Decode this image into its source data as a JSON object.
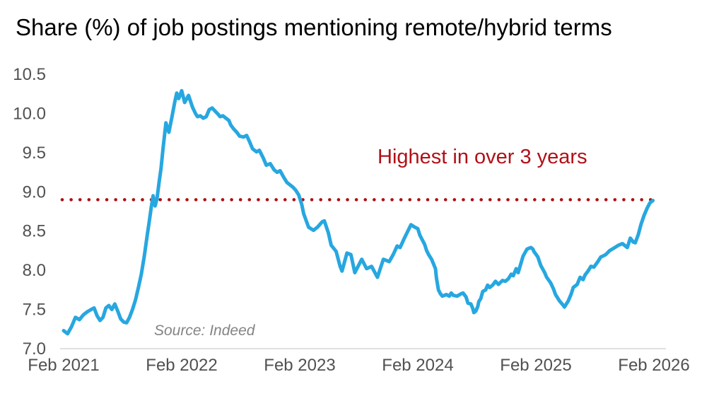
{
  "title": "Share (%) of job postings mentioning remote/hybrid terms",
  "annotation": {
    "text": "Highest in over 3 years",
    "color": "#B01118"
  },
  "source": {
    "text": "Source: Indeed"
  },
  "colors": {
    "line": "#27A7E0",
    "threshold": "#AE0E13",
    "axis_text": "#515151",
    "axis_line": "#D5D5D5",
    "title_text": "#000000",
    "source_text": "#848484",
    "background": "#FFFFFF"
  },
  "chart_data": {
    "type": "line",
    "title": "Share (%) of job postings mentioning remote/hybrid terms",
    "xlabel": "",
    "ylabel": "",
    "x_unit": "months since Feb 2021",
    "x_tick_labels": [
      "Feb 2021",
      "Feb 2022",
      "Feb 2023",
      "Feb 2024",
      "Feb 2025",
      "Feb 2026"
    ],
    "x_tick_months": [
      0,
      12,
      24,
      36,
      48,
      60
    ],
    "y_ticks": [
      7.0,
      7.5,
      8.0,
      8.5,
      9.0,
      9.5,
      10.0,
      10.5
    ],
    "y_tick_labels": [
      "7.0",
      "7.5",
      "8.0",
      "8.5",
      "9.0",
      "9.5",
      "10.0",
      "10.5"
    ],
    "ylim": [
      7.0,
      10.5
    ],
    "xlim_months": [
      0,
      60
    ],
    "grid": false,
    "legend": "none",
    "threshold_value": 8.9,
    "threshold_style": "dotted",
    "series": [
      {
        "name": "Share of job postings mentioning remote/hybrid terms (%)",
        "points": [
          [
            0,
            7.23
          ],
          [
            0.4,
            7.19
          ],
          [
            0.8,
            7.28
          ],
          [
            1.2,
            7.4
          ],
          [
            1.6,
            7.37
          ],
          [
            2.0,
            7.43
          ],
          [
            2.4,
            7.47
          ],
          [
            2.8,
            7.5
          ],
          [
            3.1,
            7.52
          ],
          [
            3.4,
            7.42
          ],
          [
            3.7,
            7.36
          ],
          [
            4.0,
            7.4
          ],
          [
            4.3,
            7.52
          ],
          [
            4.6,
            7.55
          ],
          [
            4.9,
            7.5
          ],
          [
            5.2,
            7.57
          ],
          [
            5.5,
            7.48
          ],
          [
            5.8,
            7.38
          ],
          [
            6.1,
            7.34
          ],
          [
            6.4,
            7.33
          ],
          [
            6.7,
            7.4
          ],
          [
            7.0,
            7.5
          ],
          [
            7.3,
            7.62
          ],
          [
            7.6,
            7.78
          ],
          [
            7.9,
            7.95
          ],
          [
            8.2,
            8.18
          ],
          [
            8.5,
            8.45
          ],
          [
            8.7,
            8.62
          ],
          [
            8.9,
            8.8
          ],
          [
            9.1,
            8.95
          ],
          [
            9.3,
            8.82
          ],
          [
            9.5,
            8.92
          ],
          [
            9.7,
            9.12
          ],
          [
            9.9,
            9.3
          ],
          [
            10.1,
            9.55
          ],
          [
            10.4,
            9.88
          ],
          [
            10.7,
            9.76
          ],
          [
            11.0,
            9.95
          ],
          [
            11.3,
            10.15
          ],
          [
            11.5,
            10.26
          ],
          [
            11.7,
            10.19
          ],
          [
            12.0,
            10.29
          ],
          [
            12.3,
            10.14
          ],
          [
            12.7,
            10.23
          ],
          [
            13.1,
            10.08
          ],
          [
            13.4,
            10.0
          ],
          [
            13.6,
            9.96
          ],
          [
            13.9,
            9.97
          ],
          [
            14.2,
            9.94
          ],
          [
            14.5,
            9.96
          ],
          [
            14.8,
            10.05
          ],
          [
            15.1,
            10.07
          ],
          [
            15.4,
            10.03
          ],
          [
            15.7,
            9.99
          ],
          [
            15.9,
            9.96
          ],
          [
            16.2,
            9.97
          ],
          [
            16.5,
            9.94
          ],
          [
            16.8,
            9.91
          ],
          [
            17.0,
            9.85
          ],
          [
            17.3,
            9.8
          ],
          [
            17.6,
            9.76
          ],
          [
            17.9,
            9.71
          ],
          [
            18.3,
            9.7
          ],
          [
            18.6,
            9.72
          ],
          [
            18.9,
            9.64
          ],
          [
            19.2,
            9.55
          ],
          [
            19.6,
            9.51
          ],
          [
            19.9,
            9.53
          ],
          [
            20.3,
            9.43
          ],
          [
            20.6,
            9.34
          ],
          [
            21.0,
            9.36
          ],
          [
            21.4,
            9.28
          ],
          [
            21.7,
            9.25
          ],
          [
            22.0,
            9.27
          ],
          [
            22.4,
            9.18
          ],
          [
            22.7,
            9.12
          ],
          [
            23.0,
            9.09
          ],
          [
            23.3,
            9.06
          ],
          [
            23.6,
            9.02
          ],
          [
            23.9,
            8.96
          ],
          [
            24.2,
            8.84
          ],
          [
            24.4,
            8.72
          ],
          [
            24.9,
            8.55
          ],
          [
            25.4,
            8.51
          ],
          [
            25.8,
            8.55
          ],
          [
            26.3,
            8.62
          ],
          [
            26.5,
            8.63
          ],
          [
            26.9,
            8.48
          ],
          [
            27.2,
            8.32
          ],
          [
            27.7,
            8.24
          ],
          [
            28.1,
            8.05
          ],
          [
            28.3,
            7.99
          ],
          [
            28.8,
            8.22
          ],
          [
            29.2,
            8.2
          ],
          [
            29.6,
            7.97
          ],
          [
            30.3,
            8.14
          ],
          [
            30.8,
            8.02
          ],
          [
            31.3,
            8.05
          ],
          [
            31.9,
            7.91
          ],
          [
            32.5,
            8.14
          ],
          [
            33.1,
            8.11
          ],
          [
            33.5,
            8.2
          ],
          [
            33.9,
            8.31
          ],
          [
            34.2,
            8.29
          ],
          [
            34.6,
            8.4
          ],
          [
            35.3,
            8.58
          ],
          [
            35.7,
            8.55
          ],
          [
            36.0,
            8.53
          ],
          [
            36.2,
            8.45
          ],
          [
            36.4,
            8.4
          ],
          [
            36.7,
            8.33
          ],
          [
            36.9,
            8.25
          ],
          [
            37.1,
            8.2
          ],
          [
            37.4,
            8.14
          ],
          [
            37.6,
            8.08
          ],
          [
            37.8,
            8.02
          ],
          [
            37.9,
            7.9
          ],
          [
            38.1,
            7.75
          ],
          [
            38.3,
            7.7
          ],
          [
            38.5,
            7.67
          ],
          [
            38.9,
            7.69
          ],
          [
            39.2,
            7.67
          ],
          [
            39.4,
            7.71
          ],
          [
            39.6,
            7.68
          ],
          [
            40.0,
            7.67
          ],
          [
            40.4,
            7.7
          ],
          [
            40.6,
            7.71
          ],
          [
            40.9,
            7.66
          ],
          [
            41.1,
            7.58
          ],
          [
            41.4,
            7.57
          ],
          [
            41.6,
            7.51
          ],
          [
            41.7,
            7.46
          ],
          [
            41.9,
            7.48
          ],
          [
            42.1,
            7.54
          ],
          [
            42.2,
            7.6
          ],
          [
            42.4,
            7.64
          ],
          [
            42.6,
            7.73
          ],
          [
            42.9,
            7.75
          ],
          [
            43.1,
            7.81
          ],
          [
            43.3,
            7.78
          ],
          [
            43.6,
            7.81
          ],
          [
            43.9,
            7.86
          ],
          [
            44.2,
            7.82
          ],
          [
            44.6,
            7.87
          ],
          [
            44.9,
            7.86
          ],
          [
            45.2,
            7.89
          ],
          [
            45.5,
            7.95
          ],
          [
            45.7,
            7.93
          ],
          [
            46.0,
            8.02
          ],
          [
            46.2,
            7.97
          ],
          [
            46.7,
            8.18
          ],
          [
            47.1,
            8.27
          ],
          [
            47.5,
            8.29
          ],
          [
            47.7,
            8.27
          ],
          [
            47.8,
            8.24
          ],
          [
            48.2,
            8.17
          ],
          [
            48.5,
            8.06
          ],
          [
            48.9,
            7.97
          ],
          [
            49.1,
            7.91
          ],
          [
            49.5,
            7.84
          ],
          [
            49.8,
            7.76
          ],
          [
            50.0,
            7.69
          ],
          [
            50.4,
            7.61
          ],
          [
            50.8,
            7.55
          ],
          [
            50.9,
            7.53
          ],
          [
            51.3,
            7.61
          ],
          [
            51.6,
            7.7
          ],
          [
            51.8,
            7.78
          ],
          [
            52.2,
            7.82
          ],
          [
            52.5,
            7.91
          ],
          [
            52.8,
            7.88
          ],
          [
            53.0,
            7.94
          ],
          [
            53.3,
            7.99
          ],
          [
            53.6,
            8.05
          ],
          [
            53.9,
            8.04
          ],
          [
            54.3,
            8.11
          ],
          [
            54.6,
            8.17
          ],
          [
            54.8,
            8.18
          ],
          [
            55.1,
            8.2
          ],
          [
            55.5,
            8.25
          ],
          [
            55.9,
            8.28
          ],
          [
            56.4,
            8.32
          ],
          [
            56.8,
            8.34
          ],
          [
            57.3,
            8.29
          ],
          [
            57.6,
            8.41
          ],
          [
            57.9,
            8.36
          ],
          [
            58.1,
            8.35
          ],
          [
            58.4,
            8.45
          ],
          [
            58.7,
            8.59
          ],
          [
            59.0,
            8.7
          ],
          [
            59.3,
            8.79
          ],
          [
            59.6,
            8.86
          ],
          [
            59.9,
            8.89
          ]
        ]
      }
    ]
  }
}
